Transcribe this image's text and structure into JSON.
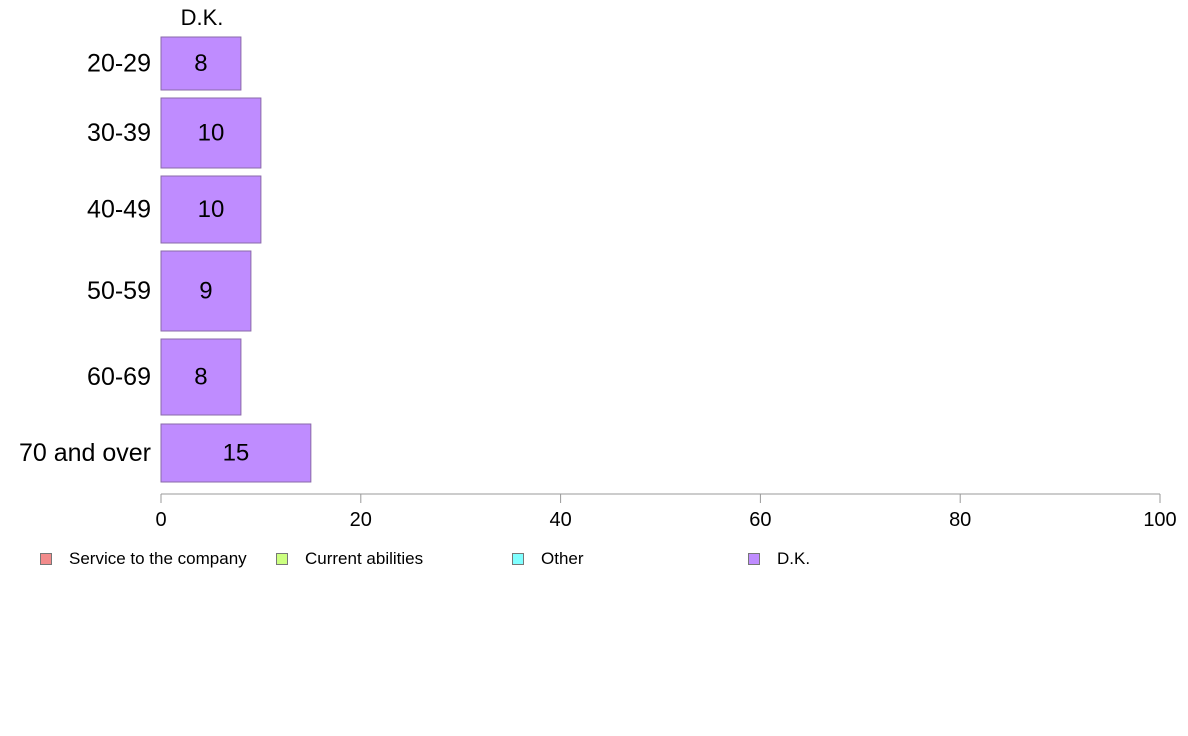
{
  "chart_data": {
    "type": "bar",
    "orientation": "horizontal",
    "stacked": true,
    "column_header": "D.K.",
    "categories": [
      "20-29",
      "30-39",
      "40-49",
      "50-59",
      "60-69",
      "70 and over"
    ],
    "series": [
      {
        "name": "Service to the company",
        "color": "#f28b8b",
        "values": [
          0,
          0,
          0,
          0,
          0,
          0
        ]
      },
      {
        "name": "Current abilities",
        "color": "#ccff80",
        "values": [
          0,
          0,
          0,
          0,
          0,
          0
        ]
      },
      {
        "name": "Other",
        "color": "#80ffff",
        "values": [
          0,
          0,
          0,
          0,
          0,
          0
        ]
      },
      {
        "name": "D.K.",
        "color": "#bf8cff",
        "values": [
          8,
          10,
          10,
          9,
          8,
          15
        ],
        "labels": [
          "8",
          "10",
          "10",
          "9",
          "8",
          "15"
        ]
      }
    ],
    "xlim": [
      0,
      100
    ],
    "xticks": [
      0,
      20,
      40,
      60,
      80,
      100
    ],
    "xtick_labels": [
      "0",
      "20",
      "40",
      "60",
      "80",
      "100"
    ],
    "grid": false,
    "legend_position": "bottom"
  }
}
